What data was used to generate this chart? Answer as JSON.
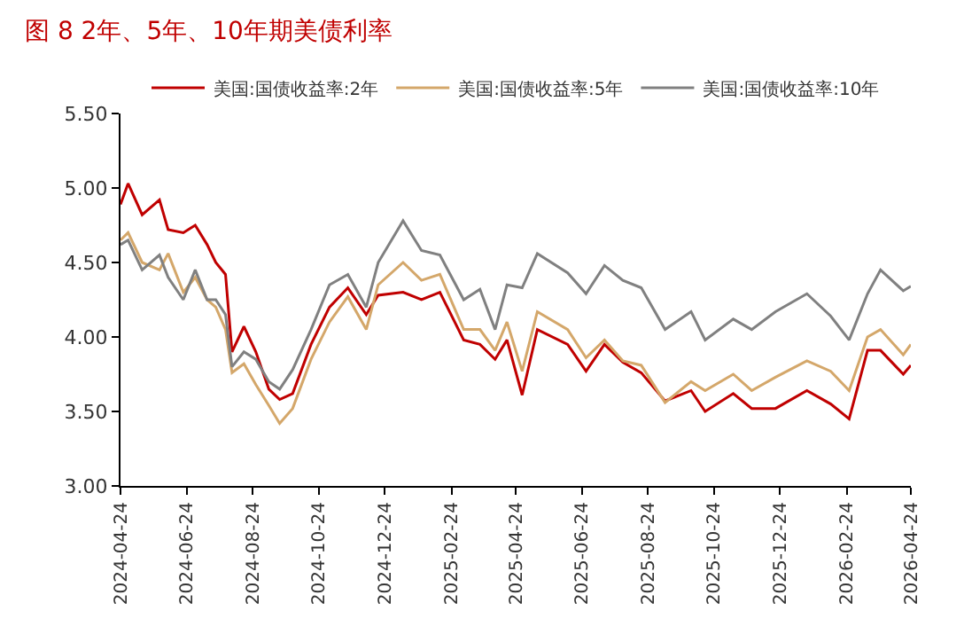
{
  "chart_data": {
    "type": "line",
    "title": "图 8 2年、5年、10年期美债利率",
    "x": [
      "2024-04-24",
      "2024-05-01",
      "2024-05-14",
      "2024-05-30",
      "2024-06-07",
      "2024-06-21",
      "2024-07-02",
      "2024-07-13",
      "2024-07-21",
      "2024-07-30",
      "2024-08-05",
      "2024-08-16",
      "2024-08-27",
      "2024-09-08",
      "2024-09-18",
      "2024-09-30",
      "2024-10-17",
      "2024-11-03",
      "2024-11-20",
      "2024-12-07",
      "2024-12-18",
      "2025-01-10",
      "2025-01-27",
      "2025-02-13",
      "2025-03-07",
      "2025-03-22",
      "2025-04-05",
      "2025-04-16",
      "2025-04-30",
      "2025-05-14",
      "2025-06-11",
      "2025-06-28",
      "2025-07-15",
      "2025-08-01",
      "2025-08-18",
      "2025-09-09",
      "2025-10-03",
      "2025-10-16",
      "2025-11-11",
      "2025-11-28",
      "2025-12-20",
      "2026-01-18",
      "2026-02-09",
      "2026-02-26",
      "2026-03-15",
      "2026-03-27",
      "2026-04-17",
      "2026-04-24"
    ],
    "series": [
      {
        "name": "美国:国债收益率:2年",
        "color": "#c00000",
        "values": [
          4.89,
          5.03,
          4.82,
          4.92,
          4.72,
          4.7,
          4.75,
          4.62,
          4.5,
          4.42,
          3.9,
          4.07,
          3.9,
          3.65,
          3.58,
          3.62,
          3.95,
          4.2,
          4.33,
          4.15,
          4.28,
          4.3,
          4.25,
          4.3,
          3.98,
          3.95,
          3.85,
          3.98,
          3.61,
          4.05,
          3.95,
          3.77,
          3.95,
          3.83,
          3.76,
          3.57,
          3.64,
          3.5,
          3.62,
          3.52,
          3.52,
          3.64,
          3.55,
          3.45,
          3.91,
          3.91,
          3.75,
          3.81
        ]
      },
      {
        "name": "美国:国债收益率:5年",
        "color": "#d4a76a",
        "values": [
          4.65,
          4.7,
          4.5,
          4.45,
          4.56,
          4.3,
          4.4,
          4.25,
          4.2,
          4.05,
          3.76,
          3.82,
          3.68,
          3.54,
          3.42,
          3.52,
          3.85,
          4.1,
          4.27,
          4.05,
          4.35,
          4.5,
          4.38,
          4.42,
          4.05,
          4.05,
          3.91,
          4.1,
          3.77,
          4.17,
          4.05,
          3.86,
          3.98,
          3.84,
          3.81,
          3.56,
          3.7,
          3.64,
          3.75,
          3.64,
          3.73,
          3.84,
          3.77,
          3.64,
          4.0,
          4.05,
          3.88,
          3.95
        ]
      },
      {
        "name": "美国:国债收益率:10年",
        "color": "#808080",
        "values": [
          4.62,
          4.65,
          4.45,
          4.55,
          4.4,
          4.25,
          4.45,
          4.25,
          4.25,
          4.15,
          3.8,
          3.9,
          3.85,
          3.7,
          3.65,
          3.78,
          4.05,
          4.35,
          4.42,
          4.2,
          4.5,
          4.78,
          4.58,
          4.55,
          4.25,
          4.32,
          4.05,
          4.35,
          4.33,
          4.56,
          4.43,
          4.29,
          4.48,
          4.38,
          4.33,
          4.05,
          4.17,
          3.98,
          4.12,
          4.05,
          4.17,
          4.29,
          4.14,
          3.98,
          4.29,
          4.45,
          4.31,
          4.34
        ]
      }
    ],
    "xlim": [
      "2024-04-24",
      "2026-04-24"
    ],
    "xticks": [
      "2024-04-24",
      "2024-06-24",
      "2024-08-24",
      "2024-10-24",
      "2024-12-24",
      "2025-02-24",
      "2025-04-24",
      "2025-06-24",
      "2025-08-24",
      "2025-10-24",
      "2025-12-24",
      "2026-02-24",
      "2026-04-24"
    ],
    "ylim": [
      3.0,
      5.5
    ],
    "yticks": [
      {
        "value": 3.0,
        "label": "3.00"
      },
      {
        "value": 3.5,
        "label": "3.50"
      },
      {
        "value": 4.0,
        "label": "4.00"
      },
      {
        "value": 4.5,
        "label": "4.50"
      },
      {
        "value": 5.0,
        "label": "5.00"
      },
      {
        "value": 5.5,
        "label": "5.50"
      }
    ],
    "legend": "top",
    "marker": "none",
    "line_style": "solid"
  }
}
